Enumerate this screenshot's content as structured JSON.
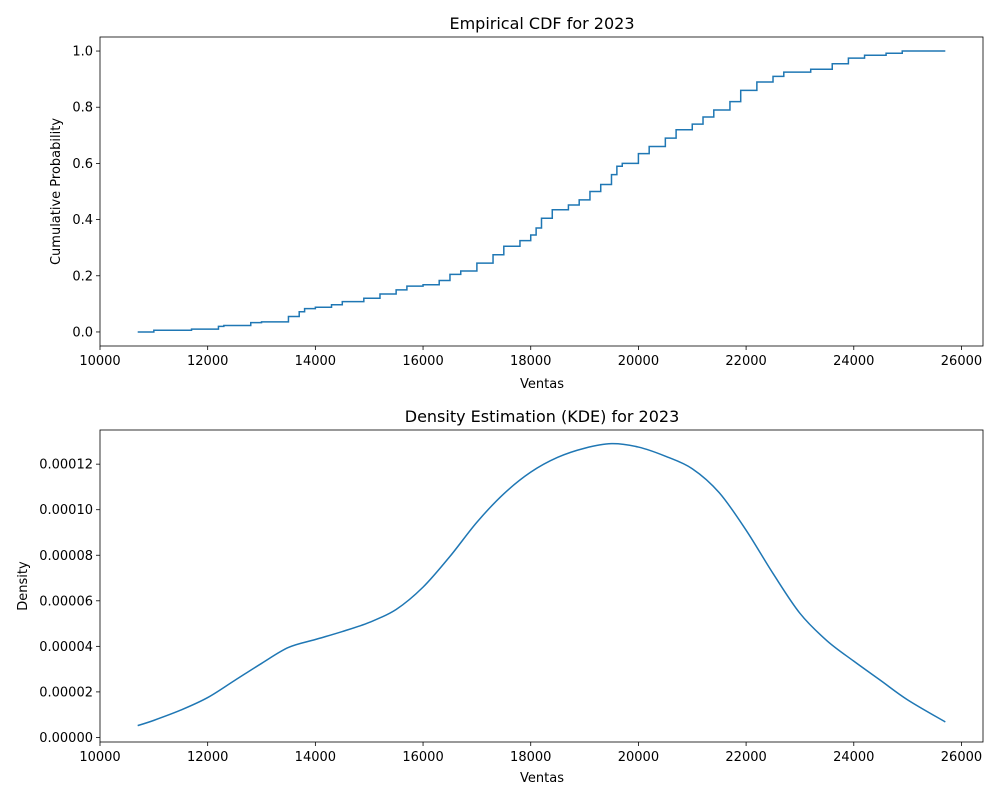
{
  "chart_data": [
    {
      "type": "line",
      "title": "Empirical CDF for 2023",
      "xlabel": "Ventas",
      "ylabel": "Cumulative Probability",
      "xlim": [
        10000,
        26400
      ],
      "ylim": [
        -0.05,
        1.05
      ],
      "xticks": [
        10000,
        12000,
        14000,
        16000,
        18000,
        20000,
        22000,
        24000,
        26000
      ],
      "yticks": [
        0.0,
        0.2,
        0.4,
        0.6,
        0.8,
        1.0
      ],
      "xtick_labels": [
        "10000",
        "12000",
        "14000",
        "16000",
        "18000",
        "20000",
        "22000",
        "24000",
        "26000"
      ],
      "ytick_labels": [
        "0.0",
        "0.2",
        "0.4",
        "0.6",
        "0.8",
        "1.0"
      ],
      "grid": false,
      "color": "#1f77b4",
      "series": [
        {
          "x": [
            10700,
            11000,
            11700,
            12200,
            12300,
            12800,
            13000,
            13500,
            13700,
            13800,
            14000,
            14300,
            14500,
            14900,
            15200,
            15500,
            15700,
            16000,
            16300,
            16500,
            16700,
            17000,
            17300,
            17500,
            17800,
            18000,
            18100,
            18200,
            18400,
            18700,
            18900,
            19100,
            19300,
            19500,
            19600,
            19700,
            20000,
            20200,
            20500,
            20700,
            21000,
            21200,
            21400,
            21700,
            21900,
            22200,
            22500,
            22700,
            23200,
            23600,
            23900,
            24200,
            24600,
            24900,
            25700
          ],
          "y": [
            0.0,
            0.006,
            0.01,
            0.02,
            0.023,
            0.033,
            0.036,
            0.055,
            0.072,
            0.083,
            0.088,
            0.097,
            0.108,
            0.12,
            0.135,
            0.15,
            0.163,
            0.168,
            0.183,
            0.205,
            0.217,
            0.245,
            0.275,
            0.305,
            0.325,
            0.345,
            0.37,
            0.405,
            0.435,
            0.452,
            0.47,
            0.5,
            0.525,
            0.56,
            0.59,
            0.6,
            0.635,
            0.66,
            0.69,
            0.72,
            0.74,
            0.765,
            0.79,
            0.82,
            0.86,
            0.89,
            0.91,
            0.925,
            0.935,
            0.955,
            0.975,
            0.985,
            0.992,
            1.0,
            1.0
          ]
        }
      ]
    },
    {
      "type": "line",
      "title": "Density Estimation (KDE) for 2023",
      "xlabel": "Ventas",
      "ylabel": "Density",
      "xlim": [
        10000,
        26400
      ],
      "ylim": [
        -2e-06,
        0.000135
      ],
      "xticks": [
        10000,
        12000,
        14000,
        16000,
        18000,
        20000,
        22000,
        24000,
        26000
      ],
      "yticks": [
        0.0,
        2e-05,
        4e-05,
        6e-05,
        8e-05,
        0.0001,
        0.00012
      ],
      "xtick_labels": [
        "10000",
        "12000",
        "14000",
        "16000",
        "18000",
        "20000",
        "22000",
        "24000",
        "26000"
      ],
      "ytick_labels": [
        "0.00000",
        "0.00002",
        "0.00004",
        "0.00006",
        "0.00008",
        "0.00010",
        "0.00012"
      ],
      "grid": false,
      "color": "#1f77b4",
      "series": [
        {
          "x": [
            10700,
            11000,
            11500,
            12000,
            12500,
            13000,
            13500,
            14000,
            14500,
            15000,
            15500,
            16000,
            16500,
            17000,
            17500,
            18000,
            18500,
            19000,
            19500,
            20000,
            20500,
            21000,
            21500,
            22000,
            22500,
            23000,
            23500,
            24000,
            24500,
            25000,
            25700
          ],
          "y": [
            5.2e-06,
            7.5e-06,
            1.2e-05,
            1.75e-05,
            2.5e-05,
            3.25e-05,
            3.95e-05,
            4.3e-05,
            4.65e-05,
            5.05e-05,
            5.62e-05,
            6.6e-05,
            7.95e-05,
            9.45e-05,
            0.000107,
            0.0001165,
            0.000123,
            0.000127,
            0.000129,
            0.0001275,
            0.0001235,
            0.000118,
            0.0001075,
            9.1e-05,
            7.2e-05,
            5.45e-05,
            4.25e-05,
            3.35e-05,
            2.5e-05,
            1.65e-05,
            6.8e-06
          ]
        }
      ]
    }
  ]
}
